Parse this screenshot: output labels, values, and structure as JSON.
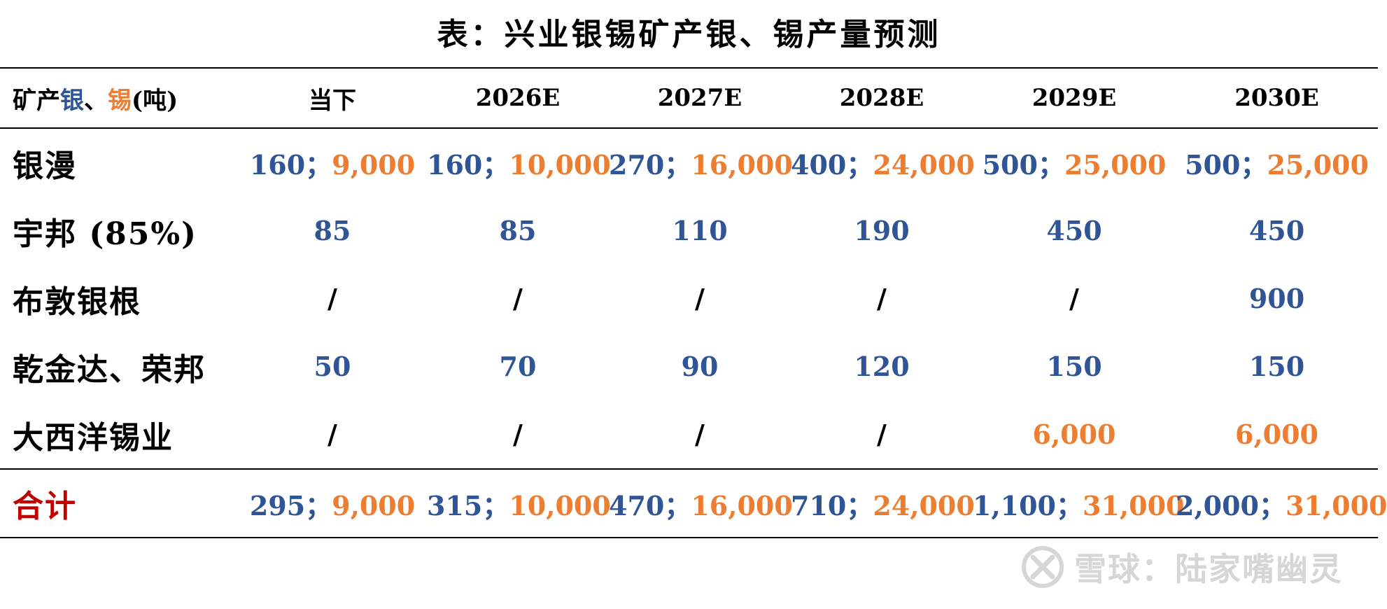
{
  "title": "表：兴业银锡矿产银、锡产量预测",
  "header": {
    "label_prefix": "矿产",
    "label_silver": "银",
    "label_sep": "、",
    "label_tin": "锡",
    "label_unit": "(吨)",
    "columns": [
      "当下",
      "2026E",
      "2027E",
      "2028E",
      "2029E",
      "2030E"
    ]
  },
  "rows": [
    {
      "label": "银漫",
      "cells": [
        {
          "silver": "160",
          "sep": "；",
          "tin": "9,000"
        },
        {
          "silver": "160",
          "sep": "；",
          "tin": "10,000"
        },
        {
          "silver": "270",
          "sep": "；",
          "tin": "16,000"
        },
        {
          "silver": "400",
          "sep": "；",
          "tin": "24,000"
        },
        {
          "silver": "500",
          "sep": "；",
          "tin": "25,000"
        },
        {
          "silver": "500",
          "sep": "；",
          "tin": "25,000"
        }
      ]
    },
    {
      "label": "宇邦 (85%)",
      "cells": [
        {
          "silver": "85"
        },
        {
          "silver": "85"
        },
        {
          "silver": "110"
        },
        {
          "silver": "190"
        },
        {
          "silver": "450"
        },
        {
          "silver": "450"
        }
      ]
    },
    {
      "label": "布敦银根",
      "cells": [
        {
          "plain": "/"
        },
        {
          "plain": "/"
        },
        {
          "plain": "/"
        },
        {
          "plain": "/"
        },
        {
          "plain": "/"
        },
        {
          "silver": "900"
        }
      ]
    },
    {
      "label": "乾金达、荣邦",
      "cells": [
        {
          "silver": "50"
        },
        {
          "silver": "70"
        },
        {
          "silver": "90"
        },
        {
          "silver": "120"
        },
        {
          "silver": "150"
        },
        {
          "silver": "150"
        }
      ]
    },
    {
      "label": "大西洋锡业",
      "cells": [
        {
          "plain": "/"
        },
        {
          "plain": "/"
        },
        {
          "plain": "/"
        },
        {
          "plain": "/"
        },
        {
          "tin": "6,000"
        },
        {
          "tin": "6,000"
        }
      ]
    }
  ],
  "total": {
    "label": "合计",
    "cells": [
      {
        "silver": "295",
        "sep": "；",
        "tin": "9,000"
      },
      {
        "silver": "315",
        "sep": "；",
        "tin": "10,000"
      },
      {
        "silver": "470",
        "sep": "；",
        "tin": "16,000"
      },
      {
        "silver": "710",
        "sep": "；",
        "tin": "24,000"
      },
      {
        "silver": "1,100",
        "sep": "；",
        "tin": "31,000"
      },
      {
        "silver": "2,000",
        "sep": "；",
        "tin": "31,000"
      }
    ]
  },
  "watermark": {
    "text": "雪球：陆家嘴幽灵",
    "icon": "snowball-logo-icon"
  },
  "colors": {
    "silver": "#2f5597",
    "tin": "#ed7d31",
    "total_label": "#c00000",
    "watermark": "#d6d6d6"
  }
}
